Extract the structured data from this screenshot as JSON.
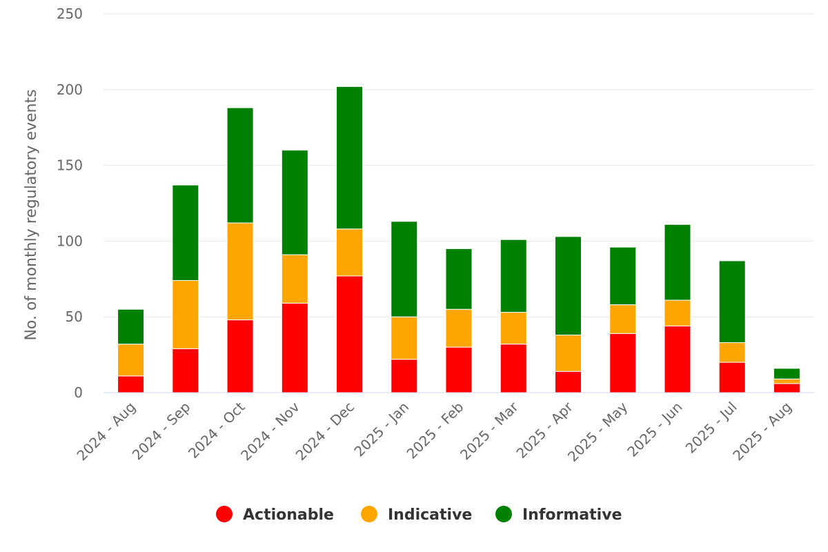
{
  "chart_data": {
    "type": "bar",
    "stacked": true,
    "categories": [
      "2024 - Aug",
      "2024 - Sep",
      "2024 - Oct",
      "2024 - Nov",
      "2024 - Dec",
      "2025 - Jan",
      "2025 - Feb",
      "2025 - Mar",
      "2025 - Apr",
      "2025 - May",
      "2025 - Jun",
      "2025 - Jul",
      "2025 - Aug"
    ],
    "series": [
      {
        "name": "Actionable",
        "color": "#ff0000",
        "values": [
          11,
          29,
          48,
          59,
          77,
          22,
          30,
          32,
          14,
          39,
          44,
          20,
          6
        ]
      },
      {
        "name": "Indicative",
        "color": "#ffa500",
        "values": [
          21,
          45,
          64,
          32,
          31,
          28,
          25,
          21,
          24,
          19,
          17,
          13,
          3
        ]
      },
      {
        "name": "Informative",
        "color": "#008000",
        "values": [
          23,
          63,
          76,
          69,
          94,
          63,
          40,
          48,
          65,
          38,
          50,
          54,
          7
        ]
      }
    ],
    "title": "",
    "xlabel": "",
    "ylabel": "No. of monthly regulatory events",
    "ylim": [
      0,
      250
    ],
    "yticks": [
      0,
      50,
      100,
      150,
      200,
      250
    ],
    "grid": true,
    "legend": "bottom-center"
  }
}
